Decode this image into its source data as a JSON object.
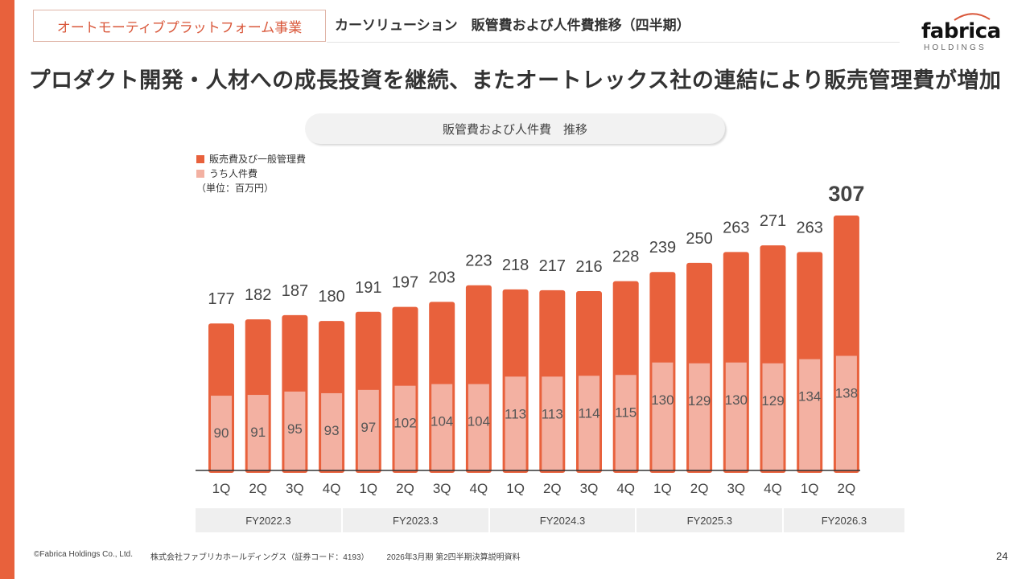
{
  "header": {
    "segment_tag": "オートモーティブプラットフォーム事業",
    "subtitle": "カーソリューション　販管費および人件費推移（四半期）",
    "logo_word": "fabrica",
    "logo_sub": "HOLDINGS"
  },
  "headline": "プロダクト開発・人材への成長投資を継続、またオートレックス社の連結により販売管理費が増加",
  "chart_title": "販管費および人件費　推移",
  "legend": {
    "items": [
      {
        "label": "販売費及び一般管理費",
        "color": "#E8613C"
      },
      {
        "label": "うち人件費",
        "color": "#F3B1A2"
      }
    ],
    "unit": "（単位：百万円）"
  },
  "chart_data": {
    "type": "bar",
    "title": "販管費および人件費　推移",
    "unit": "百万円",
    "xlabel": "",
    "ylabel": "",
    "ylim": [
      0,
      307
    ],
    "grid": false,
    "legend_position": "top-left",
    "categories": [
      "1Q",
      "2Q",
      "3Q",
      "4Q",
      "1Q",
      "2Q",
      "3Q",
      "4Q",
      "1Q",
      "2Q",
      "3Q",
      "4Q",
      "1Q",
      "2Q",
      "3Q",
      "4Q",
      "1Q",
      "2Q"
    ],
    "fiscal_groups": [
      {
        "label": "FY2022.3",
        "count": 4
      },
      {
        "label": "FY2023.3",
        "count": 4
      },
      {
        "label": "FY2024.3",
        "count": 4
      },
      {
        "label": "FY2025.3",
        "count": 4
      },
      {
        "label": "FY2026.3",
        "count": 2
      }
    ],
    "series": [
      {
        "name": "販売費及び一般管理費",
        "color": "#E8613C",
        "values": [
          177,
          182,
          187,
          180,
          191,
          197,
          203,
          223,
          218,
          217,
          216,
          228,
          239,
          250,
          263,
          271,
          263,
          307
        ]
      },
      {
        "name": "うち人件費",
        "color": "#F3B1A2",
        "values": [
          90,
          91,
          95,
          93,
          97,
          102,
          104,
          104,
          113,
          113,
          114,
          115,
          130,
          129,
          130,
          129,
          134,
          138
        ]
      }
    ],
    "highlight_last_label": true
  },
  "footer": {
    "copyright": "©Fabrica Holdings Co., Ltd.",
    "company": "株式会社ファブリカホールディングス（証券コード：4193）",
    "document": "2026年3月期 第2四半期決算説明資料",
    "page": "24"
  }
}
